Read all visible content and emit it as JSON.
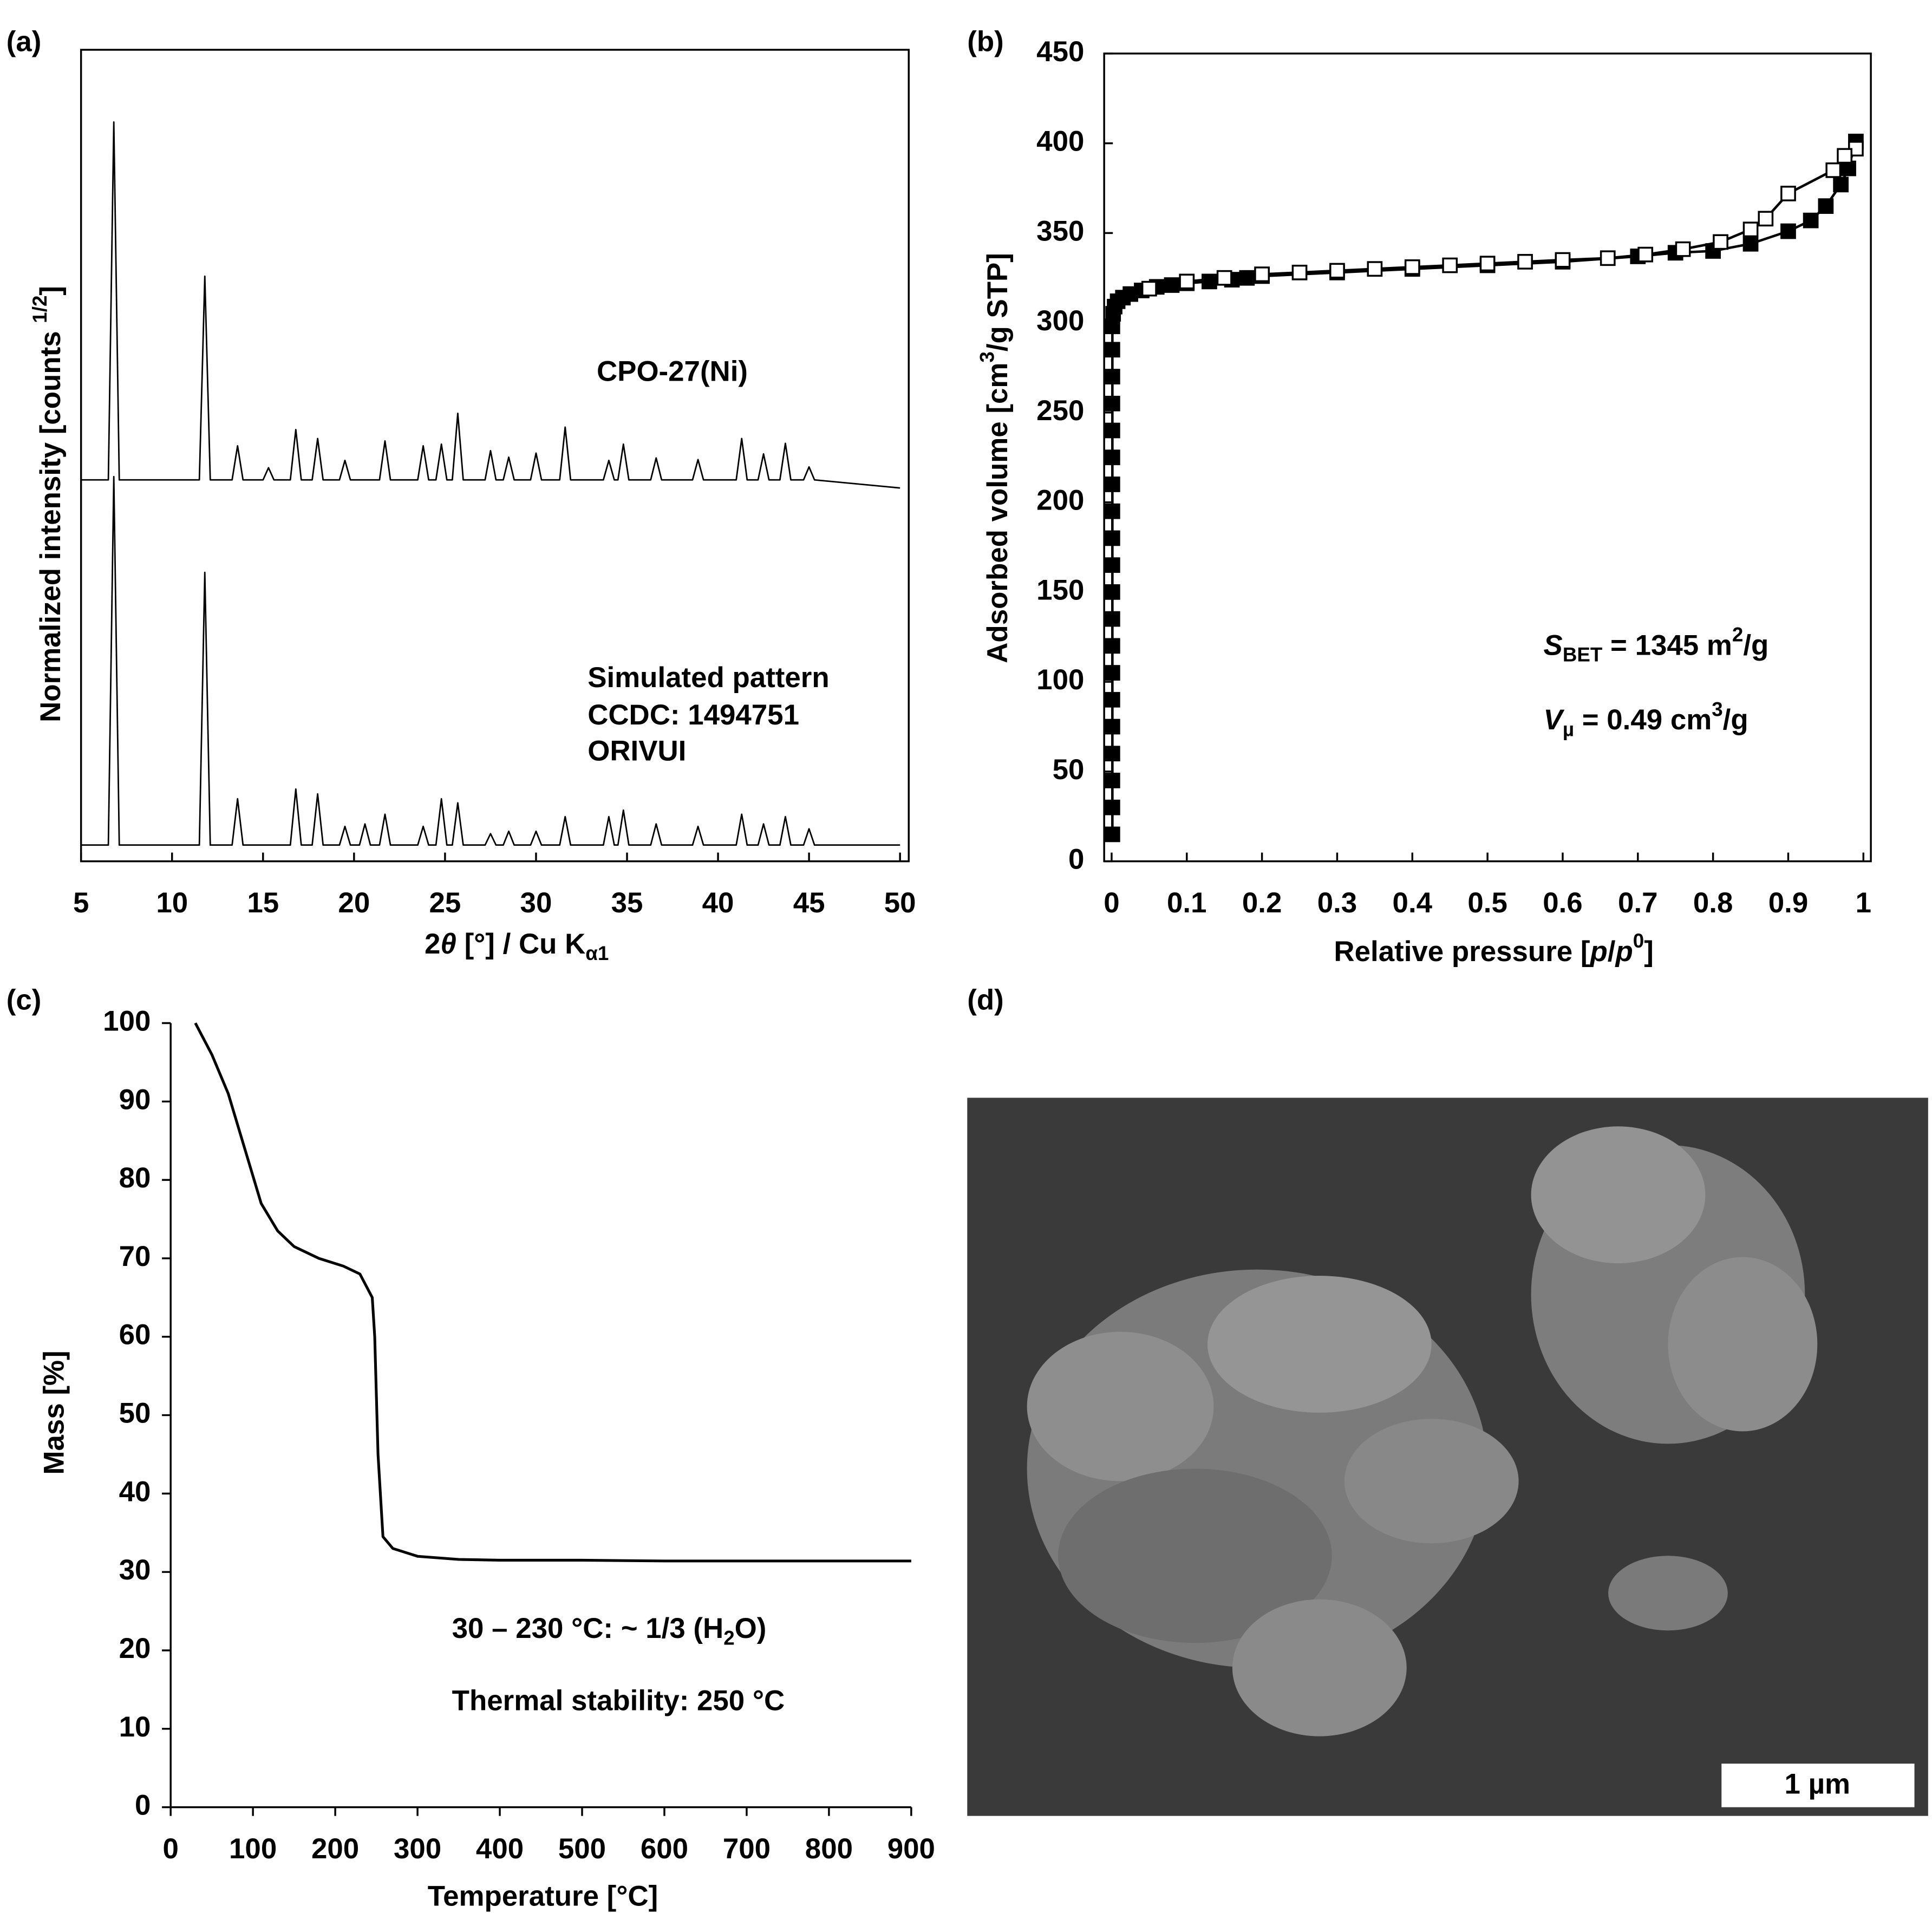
{
  "chart_data": [
    {
      "type": "line",
      "panel_label": "(a)",
      "xlabel": [
        "2",
        {
          "text": "θ",
          "pos": "italic"
        },
        " [°] / Cu K",
        {
          "text": "α1",
          "pos": "sub"
        }
      ],
      "ylabel": [
        "Normalized intensity [counts ",
        {
          "text": "1/2",
          "pos": "sup"
        },
        "]"
      ],
      "xlim": [
        5,
        50
      ],
      "xticks": [
        5,
        10,
        15,
        20,
        25,
        30,
        35,
        40,
        45,
        50
      ],
      "ylim": [
        0,
        100
      ],
      "x": [
        5,
        6.5,
        6.8,
        7.1,
        11.5,
        11.8,
        12.1,
        13.3,
        13.6,
        13.9,
        15.0,
        15.3,
        15.6,
        16.5,
        16.8,
        17.1,
        17.7,
        18.0,
        18.3,
        19.2,
        19.5,
        19.8,
        20.3,
        20.6,
        20.9,
        21.4,
        21.7,
        22.0,
        23.5,
        23.8,
        24.1,
        24.5,
        24.8,
        25.1,
        25.4,
        25.7,
        26.0,
        27.2,
        27.5,
        27.8,
        28.2,
        28.5,
        28.8,
        29.7,
        30.0,
        30.3,
        31.3,
        31.6,
        31.9,
        33.7,
        34.0,
        34.3,
        34.5,
        34.8,
        35.1,
        36.3,
        36.6,
        36.9,
        38.6,
        38.9,
        39.2,
        41.0,
        41.3,
        41.6,
        42.2,
        42.5,
        42.8,
        43.4,
        43.7,
        44.0,
        44.7,
        45.0,
        45.3,
        50
      ],
      "series": [
        {
          "name": "CPO-27(Ni)",
          "color": "#000000",
          "values": [
            47,
            47,
            91.1,
            47,
            47,
            72.1,
            47,
            47,
            51.2,
            47,
            47,
            48.5,
            47,
            47,
            53.2,
            47,
            47,
            52.1,
            47,
            47,
            49.4,
            47,
            47,
            47,
            47,
            47,
            51.8,
            47,
            47,
            51.2,
            47,
            47,
            51.4,
            47,
            47,
            55.2,
            47,
            47,
            50.6,
            47,
            47,
            49.8,
            47,
            47,
            50.3,
            47,
            47,
            53.5,
            47,
            47,
            49.4,
            47,
            47,
            51.4,
            47,
            47,
            49.7,
            47,
            47,
            49.5,
            47,
            47,
            52.1,
            47,
            47,
            50.2,
            47,
            47,
            51.5,
            47,
            47,
            48.6,
            47,
            46
          ]
        },
        {
          "name": "Simulated pattern",
          "color": "#000000",
          "values": [
            2,
            2,
            47.4,
            2,
            2,
            35.6,
            2,
            2,
            7.7,
            2,
            2,
            2,
            2,
            2,
            8.9,
            2,
            2,
            8.3,
            2,
            2,
            4.3,
            2,
            2,
            4.6,
            2,
            2,
            5.8,
            2,
            2,
            4.3,
            2,
            2,
            7.7,
            2,
            2,
            7.2,
            2,
            2,
            3.4,
            2,
            2,
            3.7,
            2,
            2,
            3.7,
            2,
            2,
            5.5,
            2,
            2,
            5.5,
            2,
            2,
            6.3,
            2,
            2,
            4.6,
            2,
            2,
            4.3,
            2,
            2,
            5.8,
            2,
            2,
            4.6,
            2,
            2,
            5.5,
            2,
            2,
            4.0,
            2,
            2
          ]
        }
      ],
      "annotations": [
        "CCDC: 1494751",
        "ORIVUI"
      ]
    },
    {
      "type": "scatter",
      "panel_label": "(b)",
      "xlabel": [
        "Relative pressure [",
        {
          "text": "p",
          "pos": "italic"
        },
        "/",
        {
          "text": "p",
          "pos": "italic"
        },
        {
          "text": "0",
          "pos": "sup"
        },
        "]"
      ],
      "ylabel": [
        "Adsorbed volume [cm",
        {
          "text": "3",
          "pos": "sup"
        },
        "/g STP]"
      ],
      "xlim": [
        0,
        1
      ],
      "xticks": [
        0,
        0.1,
        0.2,
        0.3,
        0.4,
        0.5,
        0.6,
        0.7,
        0.8,
        0.9,
        1
      ],
      "ylim": [
        0,
        450
      ],
      "yticks": [
        0,
        50,
        100,
        150,
        200,
        250,
        300,
        350,
        400,
        450
      ],
      "series": [
        {
          "marker": "filled",
          "color": "#000000",
          "x": [
            0.001,
            0.001,
            0.001,
            0.001,
            0.001,
            0.001,
            0.001,
            0.001,
            0.001,
            0.001,
            0.001,
            0.001,
            0.001,
            0.001,
            0.001,
            0.001,
            0.001,
            0.001,
            0.001,
            0.001,
            0.002,
            0.004,
            0.008,
            0.015,
            0.025,
            0.04,
            0.06,
            0.08,
            0.1,
            0.13,
            0.16,
            0.18,
            0.2,
            0.3,
            0.4,
            0.5,
            0.6,
            0.7,
            0.75,
            0.8,
            0.85,
            0.9,
            0.93,
            0.95,
            0.97,
            0.98,
            0.99
          ],
          "values": [
            15,
            30,
            45,
            60,
            75,
            90,
            105,
            120,
            135,
            150,
            165,
            180,
            195,
            210,
            225,
            240,
            255,
            270,
            285,
            298,
            305,
            309,
            312,
            314,
            316,
            318,
            320,
            321,
            322,
            323,
            324,
            325,
            326,
            328,
            330,
            332,
            334,
            337,
            339,
            340,
            344,
            351,
            357,
            365,
            377,
            386,
            401
          ]
        },
        {
          "marker": "open",
          "color": "#000000",
          "x": [
            0.99,
            0.975,
            0.96,
            0.9,
            0.87,
            0.85,
            0.81,
            0.76,
            0.71,
            0.66,
            0.6,
            0.55,
            0.5,
            0.45,
            0.4,
            0.35,
            0.3,
            0.25,
            0.2,
            0.15,
            0.1,
            0.05
          ],
          "values": [
            397,
            393,
            385,
            372,
            358,
            352,
            345,
            341,
            338,
            336,
            335,
            334,
            333,
            332,
            331,
            330,
            329,
            328,
            327,
            325,
            323,
            319
          ]
        }
      ],
      "annotations": [
        [
          {
            "text": "S",
            "pos": "italic"
          },
          {
            "text": "BET",
            "pos": "sub"
          },
          " = 1345 m",
          {
            "text": "2",
            "pos": "sup"
          },
          "/g"
        ],
        [
          {
            "text": "V",
            "pos": "italic"
          },
          {
            "text": "µ",
            "pos": "sub"
          },
          " = 0.49 cm",
          {
            "text": "3",
            "pos": "sup"
          },
          "/g"
        ]
      ]
    },
    {
      "type": "line",
      "panel_label": "(c)",
      "xlabel": "Temperature [°C]",
      "ylabel": "Mass [%]",
      "xlim": [
        0,
        900
      ],
      "xticks": [
        0,
        100,
        200,
        300,
        400,
        500,
        600,
        700,
        800,
        900
      ],
      "ylim": [
        0,
        100
      ],
      "yticks": [
        0,
        10,
        20,
        30,
        40,
        50,
        60,
        70,
        80,
        90,
        100
      ],
      "x": [
        30,
        50,
        70,
        90,
        110,
        130,
        150,
        180,
        210,
        230,
        245,
        248,
        252,
        258,
        270,
        300,
        350,
        400,
        500,
        600,
        900
      ],
      "series": [
        {
          "color": "#000000",
          "values": [
            100,
            96,
            91,
            84,
            77,
            73.5,
            71.5,
            70,
            69,
            68,
            65,
            60,
            45,
            34.5,
            33,
            32,
            31.6,
            31.5,
            31.5,
            31.4,
            31.4
          ]
        }
      ],
      "annotations": [
        [
          "30 – 230 °C: ~ 1/3 (H",
          {
            "text": "2",
            "pos": "sub"
          },
          "O)"
        ],
        "Thermal stability:  250 °C"
      ]
    },
    {
      "type": "image",
      "panel_label": "(d)",
      "scale_bar": "1 µm"
    }
  ]
}
